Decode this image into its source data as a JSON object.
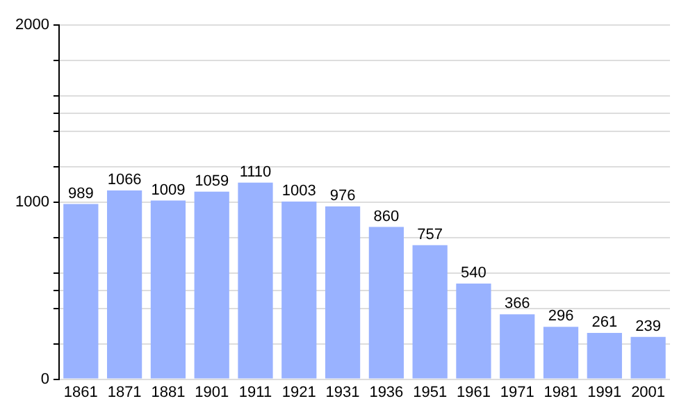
{
  "chart_data": {
    "type": "bar",
    "categories": [
      "1861",
      "1871",
      "1881",
      "1901",
      "1911",
      "1921",
      "1931",
      "1936",
      "1951",
      "1961",
      "1971",
      "1981",
      "1991",
      "2001"
    ],
    "values": [
      989,
      1066,
      1009,
      1059,
      1110,
      1003,
      976,
      860,
      757,
      540,
      366,
      296,
      261,
      239
    ],
    "color": "#99b2ff",
    "ylim": [
      0,
      2000
    ],
    "yticks": [
      0,
      {
        "value": 200,
        "label": null
      },
      {
        "value": 400,
        "label": null
      },
      {
        "value": 500,
        "label": null
      },
      {
        "value": 600,
        "label": null
      },
      {
        "value": 800,
        "label": null
      },
      1000,
      {
        "value": 1200,
        "label": null
      },
      {
        "value": 1400,
        "label": null
      },
      {
        "value": 1500,
        "label": null
      },
      {
        "value": 1600,
        "label": null
      },
      {
        "value": 1800,
        "label": null
      },
      2000
    ],
    "grid": "y",
    "data_labels": true
  }
}
